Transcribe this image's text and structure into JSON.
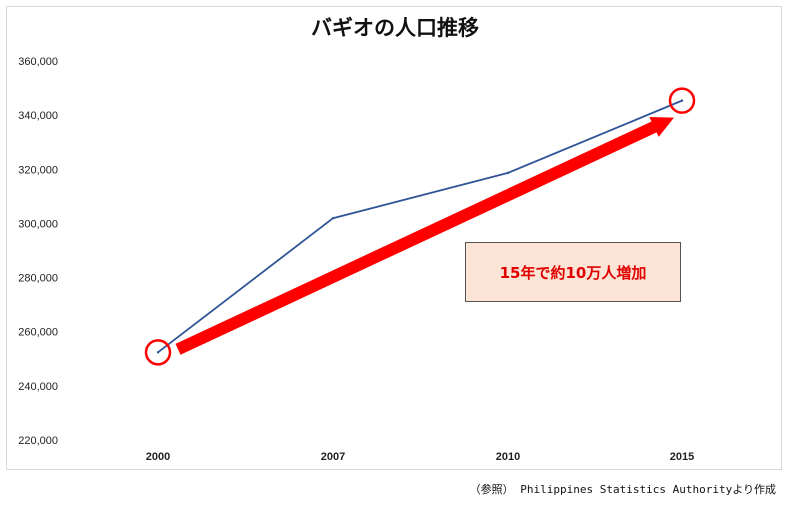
{
  "chart_data": {
    "type": "line",
    "title": "バギオの人口推移",
    "categories": [
      "2000",
      "2007",
      "2010",
      "2015"
    ],
    "series": [
      {
        "values": [
          252386,
          301926,
          318676,
          345366
        ],
        "color": "#2f5597"
      }
    ],
    "ylim": [
      220000,
      360000
    ],
    "yticks": [
      220000,
      240000,
      260000,
      280000,
      300000,
      320000,
      340000,
      360000
    ],
    "ytick_labels": [
      "220,000",
      "240,000",
      "260,000",
      "280,000",
      "300,000",
      "320,000",
      "340,000",
      "360,000"
    ],
    "grid": false,
    "annotations": {
      "callout_text": "15年で約10万人増加",
      "arrow_color": "#ff0000",
      "highlight_points": [
        "2000",
        "2015"
      ]
    }
  },
  "source_note": "（参照） Philippines Statistics Authorityより作成"
}
